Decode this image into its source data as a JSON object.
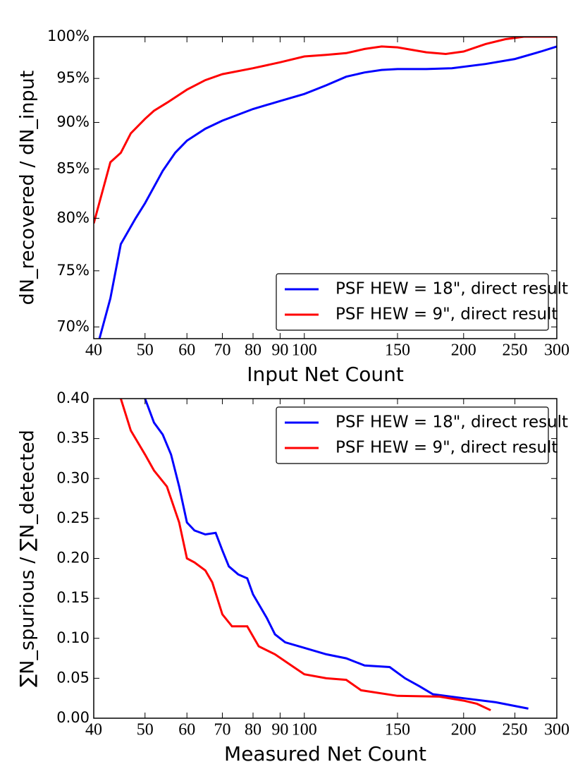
{
  "chart_data": [
    {
      "type": "line",
      "xlabel": "Input Net Count",
      "ylabel": "dN_recovered / dN_input",
      "xscale": "log",
      "yscale": "log",
      "xlim": [
        40,
        300
      ],
      "ylim": [
        69,
        100
      ],
      "xticks": [
        40,
        50,
        60,
        70,
        80,
        90,
        100,
        150,
        200,
        250,
        300
      ],
      "yticks": [
        {
          "value": 70,
          "label": "70%"
        },
        {
          "value": 75,
          "label": "75%"
        },
        {
          "value": 80,
          "label": "80%"
        },
        {
          "value": 85,
          "label": "85%"
        },
        {
          "value": 90,
          "label": "90%"
        },
        {
          "value": 95,
          "label": "95%"
        },
        {
          "value": 100,
          "label": "100%"
        }
      ],
      "legend": "lower right",
      "series": [
        {
          "name": "PSF HEW = 18\", direct result",
          "color": "#0000ff",
          "x": [
            41,
            43,
            45,
            48,
            50,
            54,
            57,
            60,
            65,
            70,
            80,
            90,
            100,
            110,
            120,
            130,
            140,
            150,
            170,
            190,
            220,
            250,
            280,
            300
          ],
          "values": [
            69,
            72.5,
            77.5,
            80,
            81.5,
            84.8,
            86.7,
            88,
            89.3,
            90.2,
            91.5,
            92.4,
            93.2,
            94.2,
            95.2,
            95.7,
            96,
            96.1,
            96.1,
            96.2,
            96.7,
            97.3,
            98.2,
            98.8
          ]
        },
        {
          "name": "PSF HEW = 9\", direct result",
          "color": "#ff0000",
          "x": [
            40,
            43,
            45,
            47,
            50,
            52,
            55,
            60,
            65,
            70,
            80,
            90,
            100,
            110,
            120,
            130,
            140,
            150,
            170,
            185,
            200,
            220,
            240,
            260,
            300
          ],
          "values": [
            79.5,
            85.7,
            86.7,
            88.8,
            90.4,
            91.3,
            92.2,
            93.7,
            94.8,
            95.5,
            96.2,
            96.9,
            97.6,
            97.8,
            98,
            98.5,
            98.8,
            98.7,
            98.1,
            97.9,
            98.2,
            99.1,
            99.7,
            100,
            100
          ]
        }
      ]
    },
    {
      "type": "line",
      "xlabel": "Measured Net Count",
      "ylabel": "∑N_spurious / ∑N_detected",
      "xscale": "log",
      "yscale": "linear",
      "xlim": [
        40,
        300
      ],
      "ylim": [
        0,
        0.4
      ],
      "xticks": [
        40,
        50,
        60,
        70,
        80,
        90,
        100,
        150,
        200,
        250,
        300
      ],
      "yticks": [
        {
          "value": 0,
          "label": "0.00"
        },
        0.05,
        {
          "value": 0.1,
          "label": "0.10"
        },
        0.15,
        {
          "value": 0.2,
          "label": "0.20"
        },
        0.25,
        {
          "value": 0.3,
          "label": "0.30"
        },
        0.35,
        {
          "value": 0.4,
          "label": "0.40"
        }
      ],
      "legend": "upper right",
      "series": [
        {
          "name": "PSF HEW = 18\", direct result",
          "color": "#0000ff",
          "x": [
            50,
            52,
            54,
            56,
            58,
            60,
            62,
            65,
            68,
            70,
            72,
            75,
            78,
            80,
            85,
            88,
            92,
            100,
            110,
            120,
            130,
            145,
            155,
            165,
            175,
            200,
            230,
            265
          ],
          "values": [
            0.4,
            0.37,
            0.355,
            0.33,
            0.29,
            0.245,
            0.235,
            0.23,
            0.232,
            0.21,
            0.19,
            0.18,
            0.175,
            0.155,
            0.125,
            0.105,
            0.095,
            0.088,
            0.08,
            0.075,
            0.066,
            0.064,
            0.05,
            0.04,
            0.03,
            0.025,
            0.02,
            0.012
          ]
        },
        {
          "name": "PSF HEW = 9\", direct result",
          "color": "#ff0000",
          "x": [
            45,
            47,
            50,
            52,
            55,
            58,
            60,
            62,
            65,
            67,
            70,
            73,
            78,
            82,
            88,
            95,
            100,
            110,
            120,
            128,
            150,
            180,
            200,
            212,
            225
          ],
          "values": [
            0.4,
            0.36,
            0.33,
            0.31,
            0.29,
            0.245,
            0.2,
            0.195,
            0.185,
            0.17,
            0.13,
            0.115,
            0.115,
            0.09,
            0.08,
            0.065,
            0.055,
            0.05,
            0.048,
            0.035,
            0.028,
            0.027,
            0.022,
            0.018,
            0.01
          ]
        }
      ]
    }
  ]
}
